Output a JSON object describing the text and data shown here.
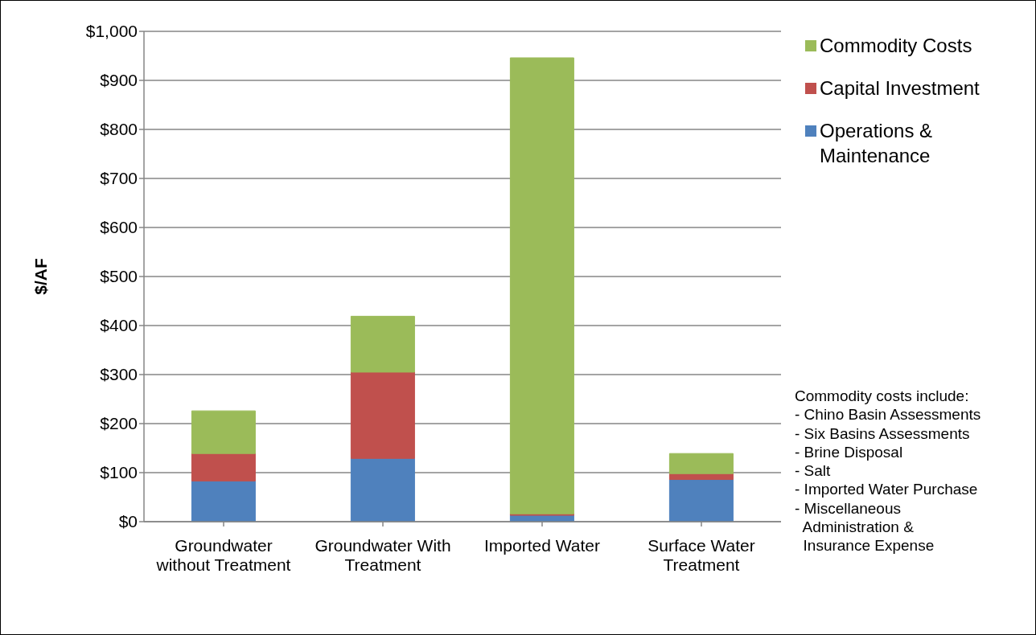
{
  "chart_data": {
    "type": "bar",
    "stacked": true,
    "ylabel": "$/AF",
    "categories": [
      "Groundwater without Treatment",
      "Groundwater With Treatment",
      "Imported Water",
      "Surface Water Treatment"
    ],
    "series": [
      {
        "name": "Operations & Maintenance",
        "color": "#4f81bd",
        "values": [
          83,
          129,
          13,
          86
        ]
      },
      {
        "name": "Capital Investment",
        "color": "#c0504d",
        "values": [
          56,
          176,
          3,
          12
        ]
      },
      {
        "name": "Commodity Costs",
        "color": "#9bbb59",
        "values": [
          87,
          114,
          930,
          41
        ]
      }
    ],
    "ylim": [
      0,
      1000
    ],
    "yticks": [
      {
        "value": 0,
        "label": "$0"
      },
      {
        "value": 100,
        "label": "$100"
      },
      {
        "value": 200,
        "label": "$200"
      },
      {
        "value": 300,
        "label": "$300"
      },
      {
        "value": 400,
        "label": "$400"
      },
      {
        "value": 500,
        "label": "$500"
      },
      {
        "value": 600,
        "label": "$600"
      },
      {
        "value": 700,
        "label": "$700"
      },
      {
        "value": 800,
        "label": "$800"
      },
      {
        "value": 900,
        "label": "$900"
      },
      {
        "value": 1000,
        "label": "$1,000"
      }
    ],
    "grid": "y",
    "legend": "top right",
    "annotations": [
      "Commodity costs include:\n- Chino Basin Assessments\n- Six Basins Assessments\n- Brine Disposal\n- Salt\n- Imported Water Purchase\n- Miscellaneous\n  Administration &\n  Insurance Expense"
    ]
  }
}
